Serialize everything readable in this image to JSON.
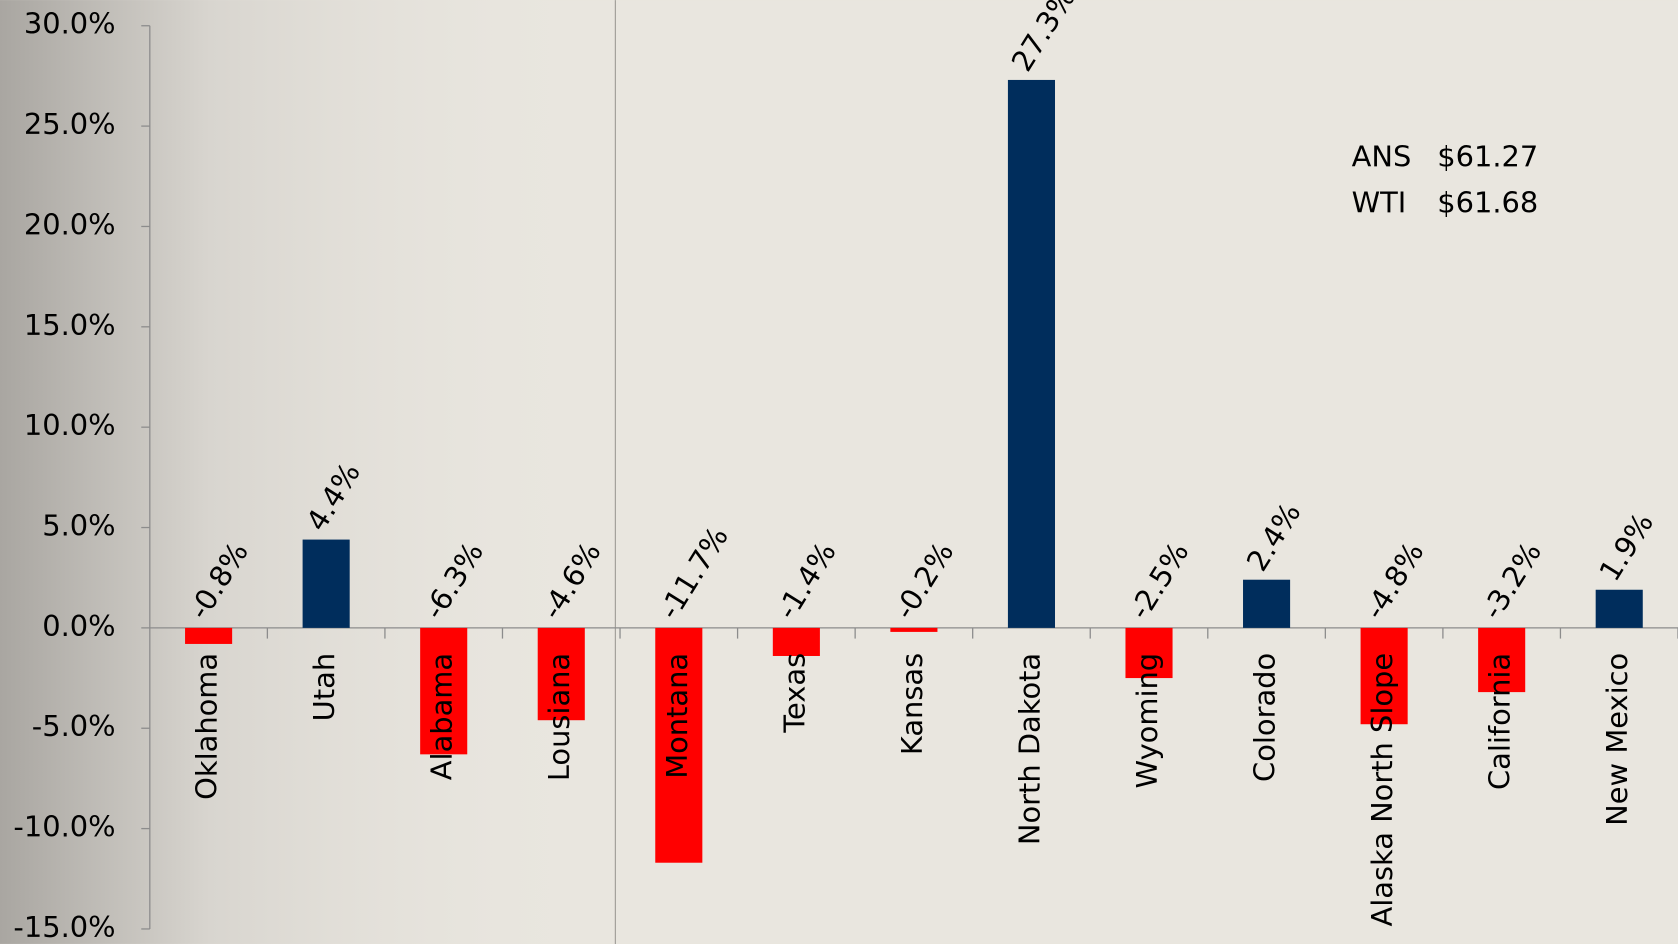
{
  "chart_data": {
    "type": "bar",
    "categories": [
      "Oklahoma",
      "Utah",
      "Alabama",
      "Lousiana",
      "Montana",
      "Texas",
      "Kansas",
      "North Dakota",
      "Wyoming",
      "Colorado",
      "Alaska North Slope",
      "California",
      "New Mexico"
    ],
    "values": [
      -0.8,
      4.4,
      -6.3,
      -4.6,
      -11.7,
      -1.4,
      -0.2,
      27.3,
      -2.5,
      2.4,
      -4.8,
      -3.2,
      1.9
    ],
    "value_labels": [
      "-0.8%",
      "4.4%",
      "-6.3%",
      "-4.6%",
      "-11.7%",
      "-1.4%",
      "-0.2%",
      "27.3%",
      "-2.5%",
      "2.4%",
      "-4.8%",
      "-3.2%",
      "1.9%"
    ],
    "positive_color": "#002d5c",
    "negative_color": "#ff0000",
    "ylim": [
      -15,
      30
    ],
    "yticks": [
      {
        "value": -15,
        "label": "-15.0%"
      },
      {
        "value": -10,
        "label": "-10.0%"
      },
      {
        "value": -5,
        "label": "-5.0%"
      },
      {
        "value": 0,
        "label": "0.0%"
      },
      {
        "value": 5,
        "label": "5.0%"
      },
      {
        "value": 10,
        "label": "10.0%"
      },
      {
        "value": 15,
        "label": "15.0%"
      },
      {
        "value": 20,
        "label": "20.0%"
      },
      {
        "value": 25,
        "label": "25.0%"
      },
      {
        "value": 30,
        "label": "30.0%"
      }
    ],
    "annotations": [
      [
        "ANS",
        "$61.27"
      ],
      [
        "WTI",
        "$61.68"
      ]
    ]
  }
}
